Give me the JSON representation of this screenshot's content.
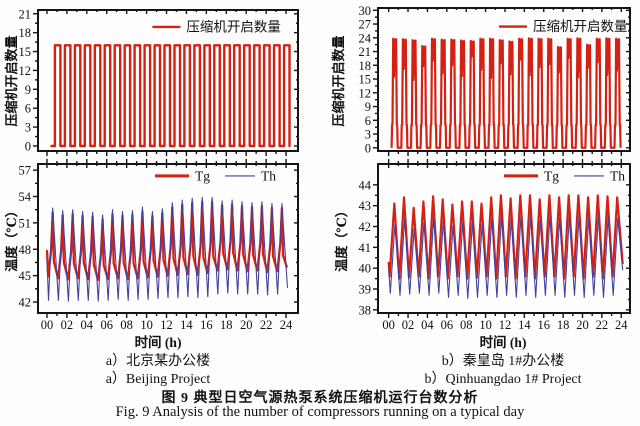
{
  "figure": {
    "x_axis_label": "时间 (h)",
    "captions": {
      "left_cn": "a）北京某办公楼",
      "left_en": "a）Beijing Project",
      "right_cn": "b）秦皇岛 1#办公楼",
      "right_en": "b）Qinhuangdao 1# Project",
      "title_cn": "图 9  典型日空气源热泵系统压缩机运行台数分析",
      "title_en": "Fig. 9  Analysis of the number of compressors running on a typical day"
    }
  },
  "colors": {
    "red": "#d42114",
    "blue": "#42429e",
    "axis": "#141414",
    "text": "#111111"
  },
  "chart_data": [
    {
      "id": "beijing-compressor-count",
      "type": "line",
      "title": "",
      "xlabel": "时间 (h)",
      "ylabel": "压缩机开启数量",
      "xlim": [
        0,
        24
      ],
      "xtick_major": 2,
      "xtick_minor": 1,
      "show_x_labels": false,
      "ylim": [
        0,
        21
      ],
      "ytick_step": 3,
      "grid": false,
      "legend": {
        "fx": 0.44,
        "fy": 0.12,
        "items": [
          {
            "label": "压缩机开启数量",
            "color": "#d42114",
            "lw": 2.4,
            "len": 28
          }
        ]
      },
      "series": [
        {
          "name": "压缩机开启数量",
          "color": "#d42114",
          "width": 2.4,
          "pattern": {
            "kind": "square",
            "from": 0.35,
            "first": 0.8,
            "on": 0.55,
            "cycles": 24,
            "high": 16,
            "low": 0,
            "to": 24.45
          }
        }
      ],
      "layout": {
        "box": {
          "l": 38,
          "t": 10,
          "r": 298,
          "b": 151
        },
        "xpad": [
          0.9,
          1.2
        ],
        "ypad": [
          0.8,
          0.6
        ],
        "row": "top"
      }
    },
    {
      "id": "qinhuangdao-compressor-count",
      "type": "line",
      "title": "",
      "xlabel": "时间 (h)",
      "ylabel": "压缩机开启数量",
      "xlim": [
        0,
        24
      ],
      "xtick_major": 2,
      "xtick_minor": 1,
      "show_x_labels": false,
      "ylim": [
        0,
        30
      ],
      "ytick_step": 3,
      "grid": false,
      "legend": {
        "fx": 0.48,
        "fy": 0.13,
        "items": [
          {
            "label": "压缩机开启数量",
            "color": "#d42114",
            "lw": 2.4,
            "len": 28
          }
        ]
      },
      "series": [
        {
          "name": "压缩机开启数量",
          "color": "#d42114",
          "width": 2.2,
          "pattern": {
            "kind": "burst",
            "first": 0.3,
            "shoulder": 5,
            "peaks": [
              23.8,
              23.7,
              23.5,
              22.2,
              23.8,
              23.6,
              23.6,
              23.4,
              23.3,
              23.8,
              23.8,
              23.5,
              23.2,
              23.8,
              23.9,
              23.8,
              23.8,
              22.0,
              23.8,
              23.9,
              22.5,
              23.8,
              23.9,
              23.8
            ],
            "dips": [
              15.5,
              17.2,
              14.8,
              17.8,
              19.0,
              16.2,
              18.0,
              15.6,
              19.8,
              17.0,
              15.2,
              18.4,
              16.0,
              19.2,
              15.8,
              17.6,
              18.2,
              16.4,
              19.6,
              15.4,
              17.4,
              18.6,
              15.9,
              16.8
            ]
          }
        }
      ],
      "layout": {
        "box": {
          "l": 58,
          "t": 8,
          "r": 310,
          "b": 151
        },
        "xpad": [
          1.1,
          0.9
        ],
        "ypad": [
          0.7,
          0.5
        ],
        "row": "top"
      }
    },
    {
      "id": "beijing-temperatures",
      "type": "line",
      "title": "",
      "xlabel": "时间 (h)",
      "ylabel": "温度（℃）",
      "xlim": [
        0,
        24
      ],
      "xtick_major": 2,
      "xtick_minor": 1,
      "show_x_labels": true,
      "ylim": [
        42,
        57
      ],
      "ytick_step": 3,
      "grid": false,
      "legend": {
        "fx": 0.45,
        "fy": 0.08,
        "items": [
          {
            "label": "Tg",
            "color": "#d42114",
            "lw": 3,
            "len": 34
          },
          {
            "label": "Th",
            "color": "#42429e",
            "lw": 1.1,
            "len": 30
          }
        ]
      },
      "series": [
        {
          "name": "Tg",
          "color": "#d42114",
          "width": 2.3,
          "pattern": {
            "kind": "bandspike",
            "start": 47.9,
            "mins": [
              44.9,
              44.7,
              44.6,
              44.7,
              44.6,
              44.5,
              44.6,
              44.7,
              44.6,
              44.7,
              44.8,
              44.9,
              45.0,
              45.1,
              45.2,
              45.1,
              45.3,
              45.6,
              45.7,
              45.6,
              45.5,
              45.6,
              45.4,
              45.5
            ],
            "mids": [
              47.9,
              47.8,
              47.7,
              47.8,
              47.6,
              47.5,
              47.7,
              47.8,
              47.7,
              47.9,
              48.0,
              48.1,
              48.3,
              48.4,
              48.5,
              48.4,
              48.5,
              48.8,
              48.9,
              48.7,
              48.6,
              48.7,
              48.5,
              48.6
            ],
            "peaks": [
              52.2,
              51.9,
              52.0,
              51.8,
              51.7,
              51.4,
              52.0,
              51.8,
              51.9,
              52.3,
              51.8,
              52.1,
              52.8,
              53.1,
              53.3,
              53.4,
              53.4,
              53.0,
              53.1,
              52.9,
              52.8,
              52.9,
              52.7,
              52.7
            ],
            "end": [
              24.1,
              45.9
            ]
          }
        },
        {
          "name": "Th",
          "color": "#42429e",
          "width": 1.1,
          "pattern": {
            "kind": "spike",
            "start": 46.8,
            "tmin": 0.15,
            "tpeak": 0.58,
            "mins": [
              42.2,
              42.2,
              42.1,
              42.2,
              42.2,
              42.1,
              42.2,
              42.3,
              42.2,
              42.3,
              42.3,
              42.4,
              42.5,
              42.5,
              42.6,
              42.5,
              42.6,
              42.9,
              43.0,
              42.9,
              42.9,
              42.9,
              42.8,
              42.9
            ],
            "peaks": [
              52.7,
              52.4,
              52.5,
              52.3,
              52.2,
              51.9,
              52.5,
              52.3,
              52.4,
              52.8,
              52.3,
              52.6,
              53.3,
              53.6,
              53.8,
              53.9,
              53.9,
              53.5,
              53.6,
              53.4,
              53.3,
              53.4,
              53.2,
              53.2
            ],
            "end": [
              24.15,
              43.6
            ]
          }
        }
      ],
      "layout": {
        "box": {
          "l": 38,
          "t": 7,
          "r": 298,
          "b": 156
        },
        "xpad": [
          0.9,
          1.2
        ],
        "ypad": [
          1.25,
          0.7
        ],
        "row": "bottom"
      }
    },
    {
      "id": "qinhuangdao-temperatures",
      "type": "line",
      "title": "",
      "xlabel": "时间 (h)",
      "ylabel": "温度（℃）",
      "xlim": [
        0,
        24
      ],
      "xtick_major": 2,
      "xtick_minor": 1,
      "show_x_labels": true,
      "ylim": [
        38,
        44
      ],
      "ytick_step": 1,
      "grid": false,
      "legend": {
        "fx": 0.5,
        "fy": 0.08,
        "items": [
          {
            "label": "Tg",
            "color": "#d42114",
            "lw": 3,
            "len": 34
          },
          {
            "label": "Th",
            "color": "#42429e",
            "lw": 1.1,
            "len": 30
          }
        ]
      },
      "series": [
        {
          "name": "Tg",
          "color": "#d42114",
          "width": 2.2,
          "pattern": {
            "kind": "spike",
            "start": 40.3,
            "tmin": 0.1,
            "tpeak": 0.58,
            "mins": [
              39.6,
              39.5,
              39.55,
              39.6,
              39.5,
              39.6,
              39.5,
              39.6,
              39.5,
              39.55,
              39.6,
              39.5,
              39.6,
              39.5,
              39.6,
              39.5,
              39.6,
              39.6,
              39.5,
              39.6,
              39.5,
              39.6,
              39.5,
              39.6
            ],
            "peaks": [
              43.1,
              43.4,
              42.9,
              43.2,
              43.45,
              43.3,
              43.05,
              43.2,
              43.2,
              43.1,
              43.4,
              43.5,
              43.35,
              43.5,
              43.5,
              43.3,
              43.5,
              43.4,
              43.5,
              43.5,
              43.4,
              43.5,
              43.45,
              43.4
            ],
            "end": [
              24.15,
              40.2
            ]
          }
        },
        {
          "name": "Th",
          "color": "#42429e",
          "width": 1.1,
          "pattern": {
            "kind": "spike",
            "start": 40.0,
            "tmin": 0.17,
            "tpeak": 0.64,
            "mins": [
              38.8,
              38.7,
              38.75,
              38.8,
              38.7,
              38.8,
              38.6,
              38.7,
              38.55,
              38.6,
              38.7,
              38.6,
              38.7,
              38.6,
              38.7,
              38.6,
              38.7,
              38.7,
              38.6,
              38.7,
              38.6,
              38.7,
              38.6,
              38.7
            ],
            "peaks": [
              42.1,
              42.4,
              41.9,
              42.2,
              42.45,
              42.3,
              42.05,
              42.2,
              42.2,
              42.1,
              42.4,
              42.5,
              42.35,
              42.5,
              42.5,
              42.3,
              42.5,
              42.4,
              42.5,
              42.5,
              42.4,
              42.5,
              42.45,
              42.4
            ],
            "end": [
              24.15,
              39.9
            ]
          }
        }
      ],
      "layout": {
        "box": {
          "l": 58,
          "t": 7,
          "r": 310,
          "b": 156
        },
        "xpad": [
          1.1,
          0.9
        ],
        "ypad": [
          0.15,
          1.0
        ],
        "row": "bottom"
      }
    }
  ]
}
